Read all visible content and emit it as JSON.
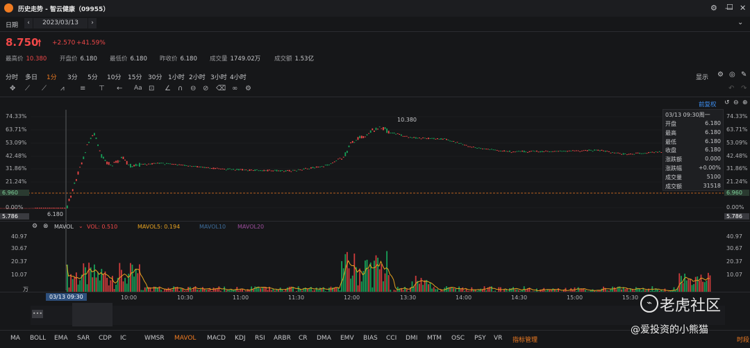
{
  "window": {
    "title": "历史走势 - 智云健康（09955）",
    "controls": [
      "⚙",
      "—",
      "☐",
      "✕"
    ]
  },
  "datebar": {
    "label": "日期",
    "date": "2023/03/13"
  },
  "quote": {
    "price": "8.750",
    "arrow": "🠕",
    "change": "+2.570",
    "change_pct": "+41.59%",
    "stats": [
      {
        "label": "最高价",
        "value": "10.380",
        "red": true
      },
      {
        "label": "开盘价",
        "value": "6.180",
        "red": false
      },
      {
        "label": "最低价",
        "value": "6.180",
        "red": false
      },
      {
        "label": "昨收价",
        "value": "6.180",
        "red": false
      },
      {
        "label": "成交量",
        "value": "1749.02万",
        "red": false
      },
      {
        "label": "成交额",
        "value": "1.53亿",
        "red": false
      }
    ]
  },
  "period_tabs": [
    "分时",
    "多日",
    "1分",
    "3分",
    "5分",
    "10分",
    "15分",
    "30分",
    "1小时",
    "2小时",
    "3小时",
    "4小时"
  ],
  "active_tab": "1分",
  "display_label": "显示",
  "adjust_label": "前复权",
  "price_axis": {
    "ticks": [
      "74.33%",
      "63.71%",
      "53.09%",
      "42.48%",
      "31.86%",
      "21.24%",
      "0.00%"
    ],
    "current": "6.960",
    "low": "5.786",
    "high_annotation": "10.380",
    "low_annotation": "6.180"
  },
  "tooltip": {
    "time": "03/13 09:30周一",
    "rows": [
      {
        "label": "开盘",
        "value": "6.180"
      },
      {
        "label": "最高",
        "value": "6.180"
      },
      {
        "label": "最低",
        "value": "6.180"
      },
      {
        "label": "收盘",
        "value": "6.180"
      },
      {
        "label": "涨跌额",
        "value": "0.000"
      },
      {
        "label": "涨跌幅",
        "value": "+0.00%"
      },
      {
        "label": "成交量",
        "value": "5100"
      },
      {
        "label": "成交额",
        "value": "31518"
      }
    ]
  },
  "volume_header": {
    "name": "MAVOL",
    "vol_label": "VOL: 0.510",
    "mavol5_label": "MAVOL5: 0.194",
    "mavol10_label": "MAVOL10",
    "mavol20_label": "MAVOL20"
  },
  "volume_axis": {
    "ticks": [
      "40.97",
      "30.67",
      "20.37",
      "10.07"
    ],
    "unit": "万"
  },
  "time_axis": {
    "cursor": "03/13 09:30",
    "ticks": [
      "10:00",
      "10:30",
      "11:00",
      "11:30",
      "12:00",
      "13:30",
      "14:00",
      "14:30",
      "15:00",
      "15:30"
    ]
  },
  "indicators": [
    "MA",
    "BOLL",
    "EMA",
    "SAR",
    "CDP",
    "IC",
    "WMSR",
    "MAVOL",
    "MACD",
    "KDJ",
    "RSI",
    "ARBR",
    "CR",
    "DMA",
    "EMV",
    "BIAS",
    "CCI",
    "DMI",
    "MTM",
    "OSC",
    "PSY",
    "VR",
    "指标管理"
  ],
  "active_indicator": "MAVOL",
  "corner_label": "时段",
  "watermark": {
    "brand": "老虎社区",
    "user": "@爱投资的小熊猫"
  },
  "colors": {
    "up": "#f04848",
    "down": "#18a058",
    "accent": "#f07c22",
    "ma5": "#e8a320",
    "bg": "#161719"
  }
}
